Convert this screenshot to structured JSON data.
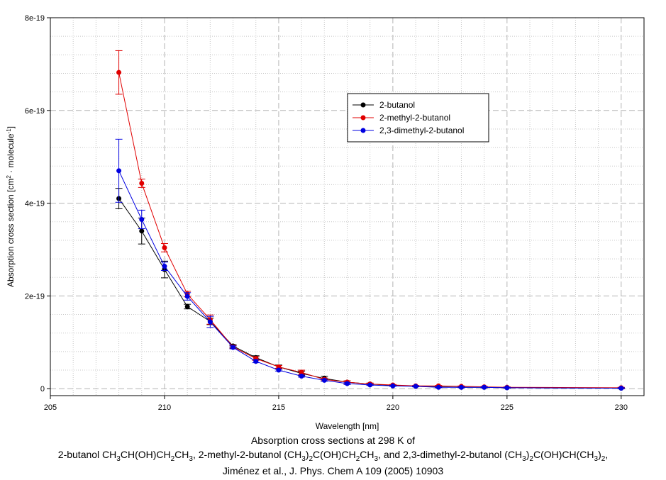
{
  "chart_data": {
    "type": "line",
    "xlabel": "Wavelength [nm]",
    "ylabel_parts": [
      "Absorption cross section [cm",
      "2",
      " · molecule",
      "-1",
      "]"
    ],
    "xlim": [
      205,
      231
    ],
    "ylim": [
      -1.5e-20,
      8e-19
    ],
    "x_ticks": [
      205,
      210,
      215,
      220,
      225,
      230
    ],
    "x_tick_labels": [
      "205",
      "210",
      "215",
      "220",
      "225",
      "230"
    ],
    "y_ticks": [
      0,
      2e-19,
      4e-19,
      6e-19,
      8e-19
    ],
    "y_tick_labels": [
      "0",
      "2e-19",
      "4e-19",
      "6e-19",
      "8e-19"
    ],
    "grid": true,
    "legend_position": "upper-right",
    "series": [
      {
        "name": "2-butanol",
        "color": "#000000",
        "x": [
          208,
          209,
          210,
          211,
          212,
          213,
          214,
          215,
          216,
          217,
          218,
          219,
          220,
          221,
          222,
          223,
          224,
          225,
          230
        ],
        "y": [
          4.1e-19,
          3.4e-19,
          2.57e-19,
          1.77e-19,
          1.45e-19,
          9.2e-20,
          6.7e-20,
          4.7e-20,
          3.3e-20,
          2.2e-20,
          1.4e-20,
          1e-20,
          7e-21,
          5e-21,
          4e-21,
          3e-21,
          3e-21,
          2e-21,
          1e-21
        ],
        "err": [
          2.2e-20,
          2.8e-20,
          1.8e-20,
          5e-21,
          7e-21,
          3e-21,
          4e-21,
          4e-21,
          5e-21,
          5e-21,
          3e-21,
          2e-21,
          1e-21,
          1e-21,
          1e-21,
          1e-21,
          1e-21,
          1e-21,
          1e-21
        ]
      },
      {
        "name": "2-methyl-2-butanol",
        "color": "#e00000",
        "x": [
          208,
          209,
          210,
          211,
          212,
          213,
          214,
          215,
          216,
          217,
          218,
          219,
          220,
          221,
          222,
          223,
          224,
          225,
          230
        ],
        "y": [
          6.82e-19,
          4.43e-19,
          3.04e-19,
          2.04e-19,
          1.49e-19,
          9e-20,
          6.5e-20,
          4.7e-20,
          3.5e-20,
          2e-20,
          1.4e-20,
          1e-20,
          8e-21,
          6e-21,
          6e-21,
          5e-21,
          4e-21,
          3e-21,
          2e-21
        ],
        "err": [
          4.7e-20,
          9e-21,
          9e-21,
          6e-21,
          1e-20,
          3e-21,
          4e-21,
          3e-21,
          5e-21,
          3e-21,
          3e-21,
          2e-21,
          1e-21,
          1e-21,
          1e-21,
          1e-21,
          1e-21,
          1e-21,
          1e-21
        ]
      },
      {
        "name": "2,3-dimethyl-2-butanol",
        "color": "#0000e0",
        "x": [
          208,
          209,
          210,
          211,
          212,
          213,
          214,
          215,
          216,
          217,
          218,
          219,
          220,
          221,
          222,
          223,
          224,
          225,
          230
        ],
        "y": [
          4.7e-19,
          3.65e-19,
          2.64e-19,
          1.99e-19,
          1.44e-19,
          8.9e-20,
          5.9e-20,
          4e-20,
          2.7e-20,
          1.8e-20,
          1.1e-20,
          8e-21,
          6e-21,
          5e-21,
          3e-21,
          3e-21,
          3e-21,
          2e-21,
          1e-21
        ],
        "err": [
          6.8e-20,
          2e-20,
          9e-21,
          8e-21,
          1.2e-20,
          3e-21,
          3e-21,
          2e-21,
          2e-21,
          2e-21,
          2e-21,
          1e-21,
          1e-21,
          1e-21,
          1e-21,
          1e-21,
          1e-21,
          1e-21,
          1e-21
        ]
      }
    ]
  },
  "caption": {
    "line1": "Absorption cross sections at 298 K of",
    "line2": [
      {
        "t": "2-butanol CH"
      },
      {
        "t": "3",
        "sub": true
      },
      {
        "t": "CH(OH)CH"
      },
      {
        "t": "2",
        "sub": true
      },
      {
        "t": "CH"
      },
      {
        "t": "3",
        "sub": true
      },
      {
        "t": ", 2-methyl-2-butanol (CH"
      },
      {
        "t": "3",
        "sub": true
      },
      {
        "t": ")"
      },
      {
        "t": "2",
        "sub": true
      },
      {
        "t": "C(OH)CH"
      },
      {
        "t": "2",
        "sub": true
      },
      {
        "t": "CH"
      },
      {
        "t": "3",
        "sub": true
      },
      {
        "t": ", and 2,3-dimethyl-2-butanol (CH"
      },
      {
        "t": "3",
        "sub": true
      },
      {
        "t": ")"
      },
      {
        "t": "2",
        "sub": true
      },
      {
        "t": "C(OH)CH(CH"
      },
      {
        "t": "3",
        "sub": true
      },
      {
        "t": ")"
      },
      {
        "t": "2",
        "sub": true
      },
      {
        "t": ","
      }
    ],
    "line3": "Jiménez et al., J. Phys. Chem A 109 (2005) 10903"
  }
}
